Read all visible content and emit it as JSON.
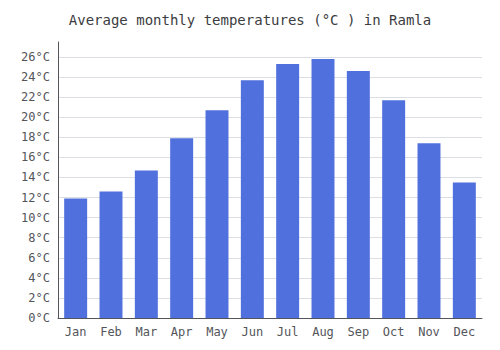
{
  "chart_data": {
    "type": "bar",
    "title": "Average monthly temperatures (°C ) in Ramla",
    "categories": [
      "Jan",
      "Feb",
      "Mar",
      "Apr",
      "May",
      "Jun",
      "Jul",
      "Aug",
      "Sep",
      "Oct",
      "Nov",
      "Dec"
    ],
    "values": [
      11.9,
      12.6,
      14.7,
      17.9,
      20.7,
      23.7,
      25.3,
      25.8,
      24.6,
      21.7,
      17.4,
      13.5
    ],
    "ylim": [
      0,
      27.5
    ],
    "yticks": [
      {
        "value": 0,
        "label": "0°C"
      },
      {
        "value": 2,
        "label": "2°C"
      },
      {
        "value": 4,
        "label": "4°C"
      },
      {
        "value": 6,
        "label": "6°C"
      },
      {
        "value": 8,
        "label": "8°C"
      },
      {
        "value": 10,
        "label": "10°C"
      },
      {
        "value": 12,
        "label": "12°C"
      },
      {
        "value": 14,
        "label": "14°C"
      },
      {
        "value": 16,
        "label": "16°C"
      },
      {
        "value": 18,
        "label": "18°C"
      },
      {
        "value": 20,
        "label": "20°C"
      },
      {
        "value": 22,
        "label": "22°C"
      },
      {
        "value": 24,
        "label": "24°C"
      },
      {
        "value": 26,
        "label": "26°C"
      }
    ],
    "grid": true
  }
}
